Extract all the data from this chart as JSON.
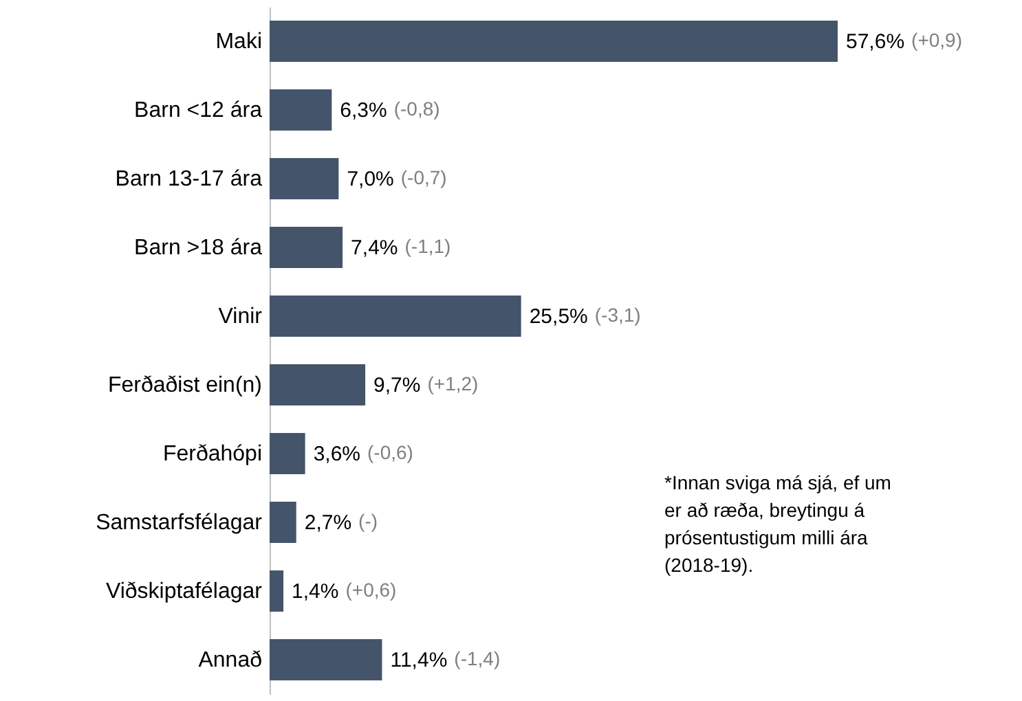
{
  "chart_data": {
    "type": "bar",
    "orientation": "horizontal",
    "categories": [
      "Maki",
      "Barn <12 ára",
      "Barn 13-17 ára ",
      "Barn >18 ára ",
      "Vinir",
      "Ferðaðist ein(n)",
      "Ferðahópi",
      "Samstarfsfélagar",
      "Viðskiptafélagar",
      "Annað"
    ],
    "values": [
      57.6,
      6.3,
      7.0,
      7.4,
      25.5,
      9.7,
      3.6,
      2.7,
      1.4,
      11.4
    ],
    "color": "#44546a",
    "value_labels": [
      "57,6%",
      "6,3%",
      "7,0%",
      "7,4%",
      "25,5%",
      "9,7%",
      "3,6%",
      "2,7%",
      "1,4%",
      "11,4%"
    ],
    "annotations": [
      "(+0,9)",
      "(-0,8)",
      "(-0,7)",
      "(-1,1)",
      "(-3,1)",
      "(+1,2)",
      "(-0,6)",
      "(-)",
      "(+0,6)",
      "(-1,4)",
      "*Innan sviga má sjá, ef um er að ræða, breytingu á prósentustigum milli ára (2018-19)."
    ]
  }
}
